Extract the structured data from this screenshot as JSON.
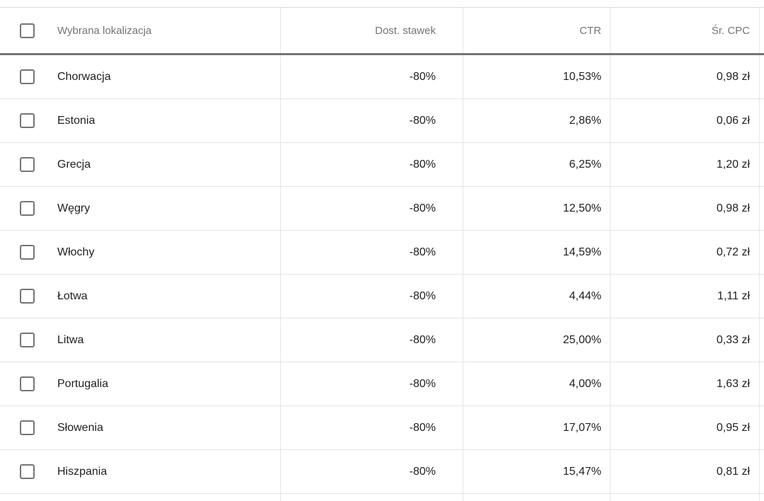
{
  "table": {
    "columns": [
      {
        "label": "Wybrana lokalizacja"
      },
      {
        "label": "Dost. stawek"
      },
      {
        "label": "CTR"
      },
      {
        "label": "Śr. CPC"
      }
    ],
    "rows": [
      {
        "name": "Chorwacja",
        "bid_adj": "-80%",
        "ctr": "10,53%",
        "avg_cpc": "0,98 zł"
      },
      {
        "name": "Estonia",
        "bid_adj": "-80%",
        "ctr": "2,86%",
        "avg_cpc": "0,06 zł"
      },
      {
        "name": "Grecja",
        "bid_adj": "-80%",
        "ctr": "6,25%",
        "avg_cpc": "1,20 zł"
      },
      {
        "name": "Węgry",
        "bid_adj": "-80%",
        "ctr": "12,50%",
        "avg_cpc": "0,98 zł"
      },
      {
        "name": "Włochy",
        "bid_adj": "-80%",
        "ctr": "14,59%",
        "avg_cpc": "0,72 zł"
      },
      {
        "name": "Łotwa",
        "bid_adj": "-80%",
        "ctr": "4,44%",
        "avg_cpc": "1,11 zł"
      },
      {
        "name": "Litwa",
        "bid_adj": "-80%",
        "ctr": "25,00%",
        "avg_cpc": "0,33 zł"
      },
      {
        "name": "Portugalia",
        "bid_adj": "-80%",
        "ctr": "4,00%",
        "avg_cpc": "1,63 zł"
      },
      {
        "name": "Słowenia",
        "bid_adj": "-80%",
        "ctr": "17,07%",
        "avg_cpc": "0,95 zł"
      },
      {
        "name": "Hiszpania",
        "bid_adj": "-80%",
        "ctr": "15,47%",
        "avg_cpc": "0,81 zł"
      }
    ],
    "checkbox_state": "unchecked"
  },
  "colors": {
    "header_text": "#757575",
    "data_text": "#212121",
    "row_divider": "#e6e6e6",
    "header_divider": "#757575",
    "checkbox_border": "#757575",
    "background": "#ffffff"
  }
}
